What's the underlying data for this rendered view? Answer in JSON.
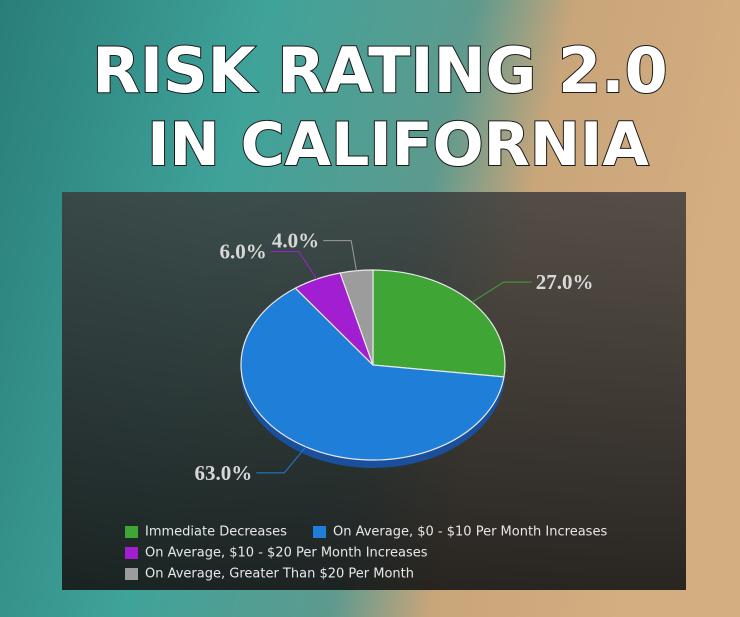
{
  "chart_data": {
    "type": "pie",
    "title": "RISK RATING 2.0",
    "subtitle": "IN CALIFORNIA",
    "categories": [
      "Immediate Decreases",
      "On Average, $0 - $10 Per Month Increases",
      "On Average, $10 - $20 Per Month Increases",
      "On Average, Greater Than $20 Per Month"
    ],
    "values": [
      27,
      63,
      6,
      4
    ],
    "value_labels": [
      "27.0%",
      "63.0%",
      "6.0%",
      "4.0%"
    ],
    "colors": [
      "#3fa535",
      "#1f7fd8",
      "#a11fd0",
      "#9c9c9c"
    ]
  }
}
